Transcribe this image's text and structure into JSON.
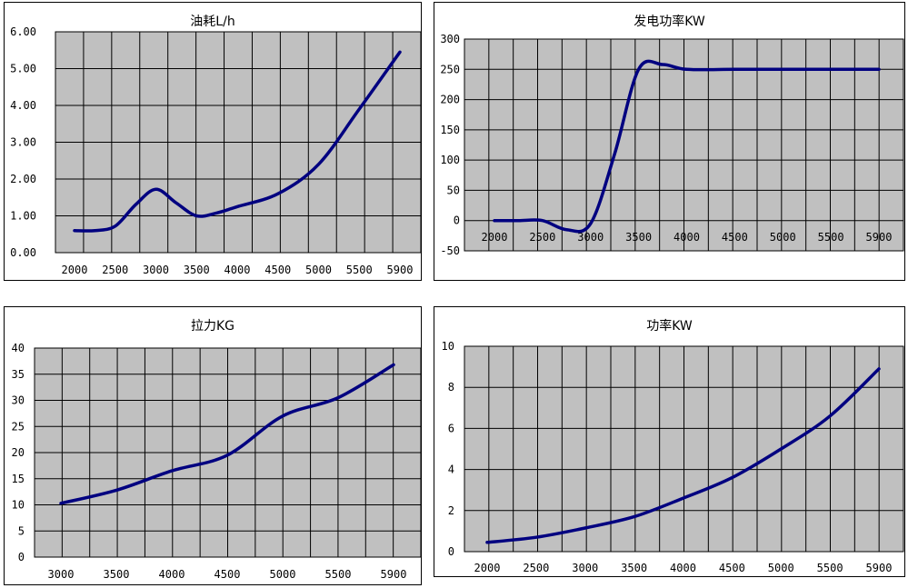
{
  "chart_data": [
    {
      "type": "line",
      "title": "油耗L/h",
      "x_ticks": [
        "2000",
        "2500",
        "3000",
        "3500",
        "4000",
        "4500",
        "5000",
        "5500",
        "5900"
      ],
      "y_ticks": [
        "0.00",
        "1.00",
        "2.00",
        "3.00",
        "4.00",
        "5.00",
        "6.00"
      ],
      "ylim": [
        0,
        6
      ],
      "grid": true,
      "plot_color": "#c0c0c0",
      "line_color": "#000080",
      "x": [
        2000,
        2250,
        2500,
        2750,
        3000,
        3250,
        3500,
        3750,
        4000,
        4500,
        5000,
        5500,
        5900
      ],
      "y": [
        0.6,
        0.6,
        0.72,
        1.3,
        1.72,
        1.35,
        1.0,
        1.08,
        1.25,
        1.6,
        2.4,
        3.9,
        5.45
      ]
    },
    {
      "type": "line",
      "title": "发电功率KW",
      "x_ticks": [
        "2000",
        "2500",
        "3000",
        "3500",
        "4000",
        "4500",
        "5000",
        "5500",
        "5900"
      ],
      "y_ticks": [
        "-50",
        "0",
        "50",
        "100",
        "150",
        "200",
        "250",
        "300"
      ],
      "ylim": [
        -50,
        300
      ],
      "grid": true,
      "plot_color": "#c0c0c0",
      "line_color": "#000080",
      "x": [
        2000,
        2250,
        2500,
        2750,
        3000,
        3250,
        3500,
        3750,
        4000,
        4500,
        5000,
        5500,
        5900
      ],
      "y": [
        0,
        0,
        0,
        -15,
        -5,
        110,
        250,
        258,
        250,
        250,
        250,
        250,
        250
      ]
    },
    {
      "type": "line",
      "title": "拉力KG",
      "x_ticks": [
        "3000",
        "3500",
        "4000",
        "4500",
        "5000",
        "5500",
        "5900"
      ],
      "y_ticks": [
        "0",
        "5",
        "10",
        "15",
        "20",
        "25",
        "30",
        "35",
        "40"
      ],
      "ylim": [
        0,
        40
      ],
      "grid": true,
      "plot_color": "#c0c0c0",
      "line_color": "#000080",
      "x": [
        3000,
        3500,
        4000,
        4500,
        5000,
        5500,
        5900
      ],
      "y": [
        10.3,
        12.8,
        16.5,
        19.5,
        27.0,
        30.5,
        36.8
      ]
    },
    {
      "type": "line",
      "title": "功率KW",
      "x_ticks": [
        "2000",
        "2500",
        "3000",
        "3500",
        "4000",
        "4500",
        "5000",
        "5500",
        "5900"
      ],
      "y_ticks": [
        "0",
        "2",
        "4",
        "6",
        "8",
        "10"
      ],
      "ylim": [
        0,
        10
      ],
      "grid": true,
      "plot_color": "#c0c0c0",
      "line_color": "#000080",
      "x": [
        2000,
        2500,
        3000,
        3500,
        4000,
        4500,
        5000,
        5500,
        5900
      ],
      "y": [
        0.45,
        0.7,
        1.15,
        1.7,
        2.6,
        3.6,
        5.0,
        6.6,
        8.9
      ]
    }
  ]
}
